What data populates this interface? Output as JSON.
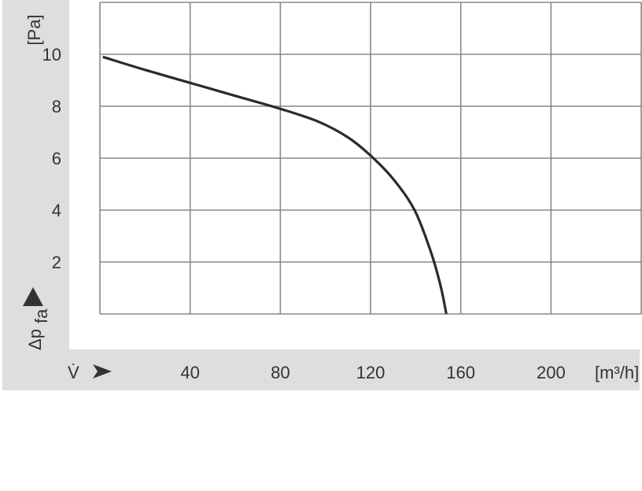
{
  "chart_data": {
    "type": "line",
    "title": "",
    "xlabel": "V̇",
    "xunit": "[m³/h]",
    "ylabel": "Δp",
    "ylabel_sub": "fa",
    "yunit": "[Pa]",
    "xlim": [
      0,
      240
    ],
    "ylim": [
      0,
      12
    ],
    "xticks": [
      40,
      80,
      120,
      160,
      200
    ],
    "yticks": [
      2,
      4,
      6,
      8,
      10
    ],
    "grid": true,
    "colors": {
      "line": "#2b2b2b",
      "grid": "#888888",
      "panel": "#dedede",
      "text": "#333333"
    },
    "series": [
      {
        "x": [
          1.3,
          20,
          40,
          60,
          80,
          97,
          110,
          120,
          130,
          139.5,
          146.7,
          151,
          153.6
        ],
        "y": [
          9.9,
          9.4,
          8.9,
          8.4,
          7.9,
          7.4,
          6.8,
          6.1,
          5.2,
          4.0,
          2.4,
          1.1,
          0
        ]
      }
    ]
  }
}
